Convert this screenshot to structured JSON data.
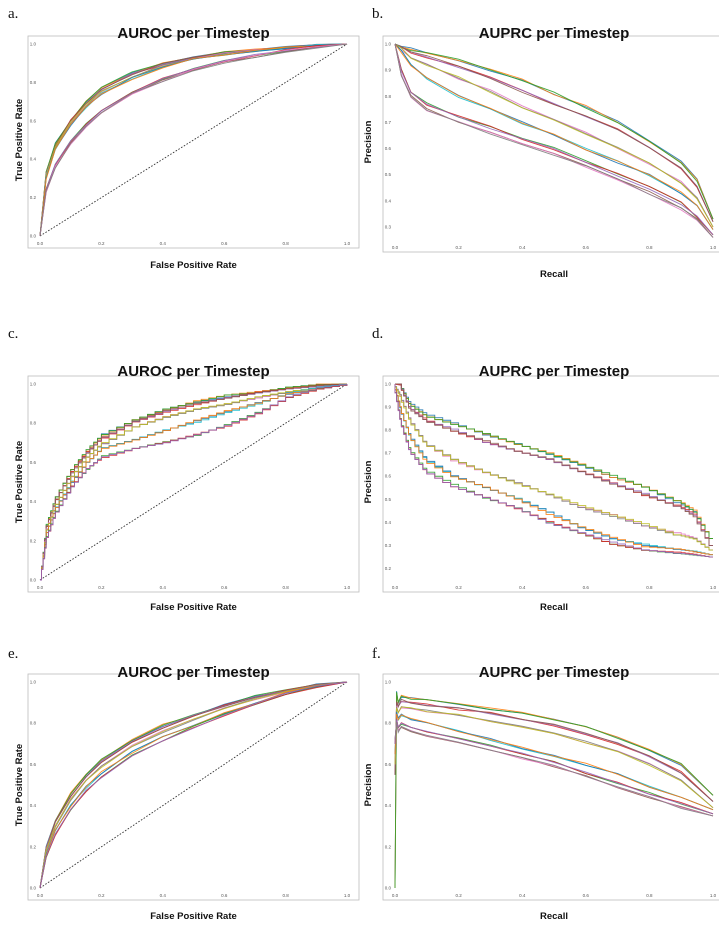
{
  "panels": [
    {
      "letter": "a."
    },
    {
      "letter": "b."
    },
    {
      "letter": "c."
    },
    {
      "letter": "d."
    },
    {
      "letter": "e."
    },
    {
      "letter": "f."
    }
  ],
  "series_colors": [
    "#1f77b4",
    "#ff7f0e",
    "#2ca02c",
    "#d62728",
    "#9467bd",
    "#8c564b",
    "#e377c2",
    "#7f7f7f",
    "#bcbd22",
    "#17becf"
  ],
  "chart_data": [
    {
      "type": "line",
      "curve": "roc",
      "title": "AUROC per Timestep",
      "xlabel": "False Positive Rate",
      "ylabel": "True Positive Rate",
      "xlim": [
        0,
        1
      ],
      "ylim": [
        0,
        1
      ],
      "xticks": [
        "0.0",
        "0.2",
        "0.4",
        "0.6",
        "0.8",
        "1.0"
      ],
      "yticks": [
        "0.0",
        "0.2",
        "0.4",
        "0.6",
        "0.8",
        "1.0"
      ],
      "grid": false,
      "legend": "none",
      "diagonal": true,
      "x": [
        0,
        0.02,
        0.05,
        0.1,
        0.15,
        0.2,
        0.3,
        0.4,
        0.5,
        0.6,
        0.7,
        0.8,
        0.9,
        1.0
      ],
      "series": [
        {
          "values": [
            0,
            0.33,
            0.48,
            0.6,
            0.7,
            0.77,
            0.85,
            0.9,
            0.93,
            0.955,
            0.97,
            0.985,
            0.995,
            1.0
          ]
        },
        {
          "values": [
            0,
            0.32,
            0.47,
            0.6,
            0.69,
            0.76,
            0.84,
            0.895,
            0.93,
            0.952,
            0.968,
            0.984,
            0.994,
            1.0
          ]
        },
        {
          "values": [
            0,
            0.31,
            0.46,
            0.59,
            0.68,
            0.75,
            0.83,
            0.89,
            0.925,
            0.95,
            0.966,
            0.982,
            0.993,
            1.0
          ]
        },
        {
          "values": [
            0,
            0.3,
            0.45,
            0.58,
            0.67,
            0.74,
            0.82,
            0.88,
            0.92,
            0.946,
            0.964,
            0.98,
            0.992,
            1.0
          ]
        },
        {
          "values": [
            0,
            0.24,
            0.37,
            0.49,
            0.58,
            0.65,
            0.75,
            0.82,
            0.87,
            0.91,
            0.94,
            0.965,
            0.985,
            1.0
          ]
        },
        {
          "values": [
            0,
            0.23,
            0.36,
            0.48,
            0.57,
            0.64,
            0.74,
            0.81,
            0.865,
            0.905,
            0.935,
            0.962,
            0.984,
            1.0
          ]
        }
      ]
    },
    {
      "type": "line",
      "curve": "pr",
      "title": "AUPRC per Timestep",
      "xlabel": "Recall",
      "ylabel": "Precision",
      "xlim": [
        0,
        1
      ],
      "ylim": [
        0.25,
        1.0
      ],
      "xticks": [
        "0.0",
        "0.2",
        "0.4",
        "0.6",
        "0.8",
        "1.0"
      ],
      "yticks": [
        "0.3",
        "0.4",
        "0.5",
        "0.6",
        "0.7",
        "0.8",
        "0.9",
        "1.0"
      ],
      "grid": false,
      "legend": "none",
      "x": [
        0,
        0.02,
        0.05,
        0.1,
        0.2,
        0.3,
        0.4,
        0.5,
        0.6,
        0.7,
        0.8,
        0.9,
        0.95,
        1.0
      ],
      "series": [
        {
          "values": [
            1.0,
            0.99,
            0.98,
            0.97,
            0.94,
            0.9,
            0.86,
            0.81,
            0.76,
            0.7,
            0.63,
            0.55,
            0.48,
            0.33
          ]
        },
        {
          "values": [
            1.0,
            0.99,
            0.97,
            0.95,
            0.91,
            0.87,
            0.82,
            0.77,
            0.72,
            0.67,
            0.6,
            0.52,
            0.45,
            0.32
          ]
        },
        {
          "values": [
            1.0,
            0.98,
            0.95,
            0.92,
            0.87,
            0.82,
            0.76,
            0.71,
            0.66,
            0.6,
            0.54,
            0.47,
            0.41,
            0.3
          ]
        },
        {
          "values": [
            1.0,
            0.97,
            0.92,
            0.87,
            0.8,
            0.75,
            0.7,
            0.65,
            0.6,
            0.55,
            0.5,
            0.43,
            0.38,
            0.29
          ]
        },
        {
          "values": [
            1.0,
            0.9,
            0.82,
            0.77,
            0.72,
            0.68,
            0.64,
            0.6,
            0.55,
            0.5,
            0.45,
            0.39,
            0.34,
            0.27
          ]
        },
        {
          "values": [
            1.0,
            0.88,
            0.8,
            0.75,
            0.7,
            0.66,
            0.62,
            0.58,
            0.53,
            0.48,
            0.43,
            0.37,
            0.33,
            0.26
          ]
        }
      ]
    },
    {
      "type": "line",
      "curve": "roc",
      "stepped": true,
      "title": "AUROC per Timestep",
      "xlabel": "False Positive Rate",
      "ylabel": "True Positive Rate",
      "xlim": [
        0,
        1
      ],
      "ylim": [
        0,
        1
      ],
      "xticks": [
        "0.0",
        "0.2",
        "0.4",
        "0.6",
        "0.8",
        "1.0"
      ],
      "yticks": [
        "0.0",
        "0.2",
        "0.4",
        "0.6",
        "0.8",
        "1.0"
      ],
      "grid": false,
      "legend": "none",
      "diagonal": true,
      "x": [
        0,
        0.02,
        0.05,
        0.1,
        0.15,
        0.2,
        0.3,
        0.4,
        0.5,
        0.6,
        0.7,
        0.8,
        0.9,
        1.0
      ],
      "series": [
        {
          "values": [
            0,
            0.28,
            0.42,
            0.56,
            0.66,
            0.74,
            0.82,
            0.87,
            0.91,
            0.94,
            0.96,
            0.98,
            0.995,
            1.0
          ]
        },
        {
          "values": [
            0,
            0.27,
            0.41,
            0.55,
            0.65,
            0.73,
            0.81,
            0.86,
            0.9,
            0.93,
            0.955,
            0.975,
            0.99,
            1.0
          ]
        },
        {
          "values": [
            0,
            0.26,
            0.39,
            0.53,
            0.63,
            0.7,
            0.78,
            0.83,
            0.87,
            0.9,
            0.93,
            0.96,
            0.985,
            1.0
          ]
        },
        {
          "values": [
            0,
            0.24,
            0.37,
            0.5,
            0.6,
            0.67,
            0.72,
            0.76,
            0.81,
            0.86,
            0.9,
            0.95,
            0.98,
            1.0
          ]
        },
        {
          "values": [
            0,
            0.22,
            0.35,
            0.48,
            0.57,
            0.63,
            0.67,
            0.7,
            0.74,
            0.79,
            0.85,
            0.93,
            0.975,
            1.0
          ]
        }
      ]
    },
    {
      "type": "line",
      "curve": "pr",
      "stepped": true,
      "title": "AUPRC per Timestep",
      "xlabel": "Recall",
      "ylabel": "Precision",
      "xlim": [
        0,
        1
      ],
      "ylim": [
        0.15,
        1.0
      ],
      "xticks": [
        "0.0",
        "0.2",
        "0.4",
        "0.6",
        "0.8",
        "1.0"
      ],
      "yticks": [
        "0.2",
        "0.3",
        "0.4",
        "0.5",
        "0.6",
        "0.7",
        "0.8",
        "0.9",
        "1.0"
      ],
      "grid": false,
      "legend": "none",
      "x": [
        0,
        0.02,
        0.05,
        0.1,
        0.2,
        0.3,
        0.4,
        0.5,
        0.6,
        0.7,
        0.8,
        0.9,
        0.95,
        1.0
      ],
      "series": [
        {
          "values": [
            1.0,
            1.0,
            0.92,
            0.87,
            0.83,
            0.78,
            0.74,
            0.7,
            0.65,
            0.6,
            0.55,
            0.49,
            0.45,
            0.33
          ]
        },
        {
          "values": [
            1.0,
            1.0,
            0.9,
            0.85,
            0.8,
            0.75,
            0.71,
            0.67,
            0.62,
            0.57,
            0.52,
            0.47,
            0.43,
            0.3
          ]
        },
        {
          "values": [
            1.0,
            0.95,
            0.85,
            0.75,
            0.67,
            0.62,
            0.57,
            0.52,
            0.47,
            0.43,
            0.39,
            0.35,
            0.33,
            0.28
          ]
        },
        {
          "values": [
            1.0,
            0.9,
            0.78,
            0.68,
            0.6,
            0.55,
            0.5,
            0.44,
            0.38,
            0.33,
            0.3,
            0.28,
            0.27,
            0.26
          ]
        },
        {
          "values": [
            1.0,
            0.85,
            0.72,
            0.63,
            0.56,
            0.51,
            0.46,
            0.4,
            0.35,
            0.31,
            0.28,
            0.27,
            0.26,
            0.25
          ]
        }
      ]
    },
    {
      "type": "line",
      "curve": "roc",
      "title": "AUROC per Timestep",
      "xlabel": "False Positive Rate",
      "ylabel": "True Positive Rate",
      "xlim": [
        0,
        1
      ],
      "ylim": [
        0,
        1
      ],
      "xticks": [
        "0.0",
        "0.2",
        "0.4",
        "0.6",
        "0.8",
        "1.0"
      ],
      "yticks": [
        "0.0",
        "0.2",
        "0.4",
        "0.6",
        "0.8",
        "1.0"
      ],
      "grid": false,
      "legend": "none",
      "diagonal": true,
      "x": [
        0,
        0.02,
        0.05,
        0.1,
        0.15,
        0.2,
        0.3,
        0.4,
        0.5,
        0.6,
        0.7,
        0.8,
        0.9,
        1.0
      ],
      "series": [
        {
          "values": [
            0,
            0.2,
            0.33,
            0.46,
            0.55,
            0.62,
            0.72,
            0.79,
            0.84,
            0.89,
            0.93,
            0.96,
            0.985,
            1.0
          ]
        },
        {
          "values": [
            0,
            0.19,
            0.32,
            0.45,
            0.54,
            0.61,
            0.71,
            0.78,
            0.835,
            0.885,
            0.925,
            0.958,
            0.984,
            1.0
          ]
        },
        {
          "values": [
            0,
            0.18,
            0.3,
            0.43,
            0.52,
            0.59,
            0.69,
            0.76,
            0.82,
            0.87,
            0.915,
            0.952,
            0.982,
            1.0
          ]
        },
        {
          "values": [
            0,
            0.16,
            0.28,
            0.4,
            0.49,
            0.56,
            0.66,
            0.73,
            0.79,
            0.85,
            0.9,
            0.945,
            0.98,
            1.0
          ]
        },
        {
          "values": [
            0,
            0.15,
            0.26,
            0.38,
            0.47,
            0.54,
            0.64,
            0.71,
            0.78,
            0.84,
            0.895,
            0.942,
            0.978,
            1.0
          ]
        }
      ]
    },
    {
      "type": "line",
      "curve": "pr",
      "title": "AUPRC per Timestep",
      "xlabel": "Recall",
      "ylabel": "Precision",
      "xlim": [
        0,
        1
      ],
      "ylim": [
        0,
        1.0
      ],
      "xticks": [
        "0.0",
        "0.2",
        "0.4",
        "0.6",
        "0.8",
        "1.0"
      ],
      "yticks": [
        "0.0",
        "0.2",
        "0.4",
        "0.6",
        "0.8",
        "1.0"
      ],
      "grid": false,
      "legend": "none",
      "x": [
        0,
        0.005,
        0.01,
        0.02,
        0.05,
        0.1,
        0.2,
        0.3,
        0.4,
        0.5,
        0.6,
        0.7,
        0.8,
        0.9,
        1.0
      ],
      "series": [
        {
          "values": [
            0.0,
            0.95,
            0.9,
            0.93,
            0.92,
            0.91,
            0.89,
            0.87,
            0.85,
            0.82,
            0.78,
            0.73,
            0.67,
            0.6,
            0.45
          ]
        },
        {
          "values": [
            0.55,
            0.9,
            0.88,
            0.91,
            0.9,
            0.89,
            0.87,
            0.85,
            0.82,
            0.79,
            0.75,
            0.7,
            0.64,
            0.56,
            0.42
          ]
        },
        {
          "values": [
            0.6,
            0.88,
            0.85,
            0.88,
            0.87,
            0.86,
            0.84,
            0.81,
            0.78,
            0.75,
            0.71,
            0.66,
            0.6,
            0.52,
            0.39
          ]
        },
        {
          "values": [
            0.65,
            0.85,
            0.82,
            0.84,
            0.82,
            0.8,
            0.76,
            0.72,
            0.68,
            0.64,
            0.6,
            0.55,
            0.49,
            0.44,
            0.38
          ]
        },
        {
          "values": [
            0.7,
            0.82,
            0.78,
            0.8,
            0.78,
            0.76,
            0.73,
            0.69,
            0.65,
            0.61,
            0.56,
            0.51,
            0.46,
            0.41,
            0.36
          ]
        },
        {
          "values": [
            0.72,
            0.8,
            0.76,
            0.78,
            0.76,
            0.74,
            0.71,
            0.67,
            0.63,
            0.59,
            0.54,
            0.49,
            0.44,
            0.39,
            0.35
          ]
        }
      ]
    }
  ]
}
